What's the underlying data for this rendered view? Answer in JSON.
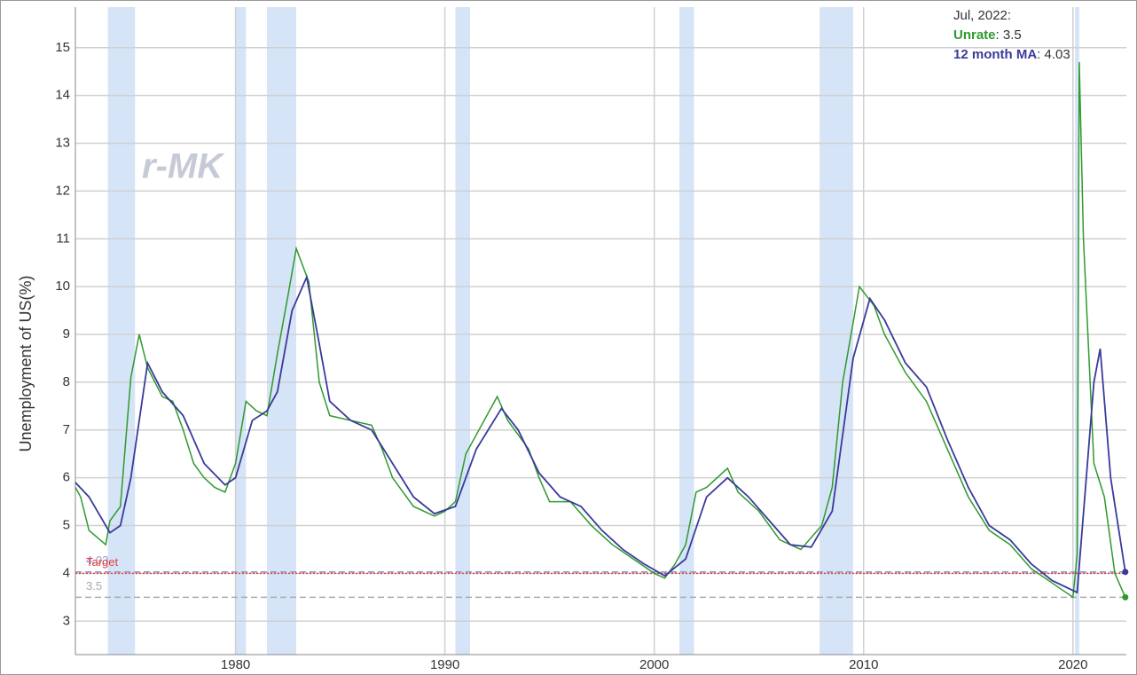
{
  "chart_data": {
    "type": "line",
    "y_label": "Unemployment of US(%)",
    "watermark": "r-MK",
    "xlim": [
      1972.35,
      2022.55
    ],
    "xticks": [
      1980,
      1990,
      2000,
      2010,
      2020
    ],
    "ylim": [
      2.3,
      15.85
    ],
    "yticks": [
      3,
      4,
      5,
      6,
      7,
      8,
      9,
      10,
      11,
      12,
      13,
      14,
      15
    ],
    "grid": true,
    "recessions": [
      [
        1973.9,
        1975.2
      ],
      [
        1980.0,
        1980.5
      ],
      [
        1981.5,
        1982.9
      ],
      [
        1990.5,
        1991.2
      ],
      [
        2001.2,
        2001.9
      ],
      [
        2007.9,
        2009.5
      ],
      [
        2020.1,
        2020.3
      ]
    ],
    "recession_color": "#d6e4f7",
    "reference_lines": [
      {
        "label": "4.03",
        "value": 4.03,
        "color": "#9a9ad0",
        "style": "dashed"
      },
      {
        "label": "Target",
        "value": 4,
        "color": "#e04040",
        "style": "dotted"
      },
      {
        "label": "3.5",
        "value": 3.5,
        "color": "#aaaaaa",
        "style": "dashed"
      }
    ],
    "tooltip": {
      "title": "Jul, 2022:"
    },
    "series": [
      {
        "name": "Unrate",
        "color": "#2e9a2e",
        "x": [
          1972.35,
          1972.6,
          1973.0,
          1973.8,
          1974.0,
          1974.5,
          1975.0,
          1975.4,
          1975.8,
          1976.5,
          1977.0,
          1977.5,
          1978.0,
          1978.5,
          1979.0,
          1979.5,
          1980.0,
          1980.5,
          1981.0,
          1981.5,
          1982.0,
          1982.5,
          1982.9,
          1983.5,
          1984.0,
          1984.5,
          1985.5,
          1986.5,
          1987.0,
          1987.5,
          1988.5,
          1989.5,
          1990.0,
          1990.5,
          1991.0,
          1991.5,
          1992.5,
          1993.0,
          1993.5,
          1994.0,
          1994.5,
          1995.0,
          1996.0,
          1997.0,
          1998.0,
          1999.0,
          2000.0,
          2000.5,
          2001.0,
          2001.5,
          2002.0,
          2002.5,
          2003.5,
          2004.0,
          2005.0,
          2006.0,
          2007.0,
          2008.0,
          2008.5,
          2009.0,
          2009.8,
          2010.5,
          2011.0,
          2012.0,
          2013.0,
          2014.0,
          2015.0,
          2016.0,
          2017.0,
          2018.0,
          2019.0,
          2020.0,
          2020.2,
          2020.3,
          2020.5,
          2021.0,
          2021.5,
          2022.0,
          2022.5
        ],
        "values": [
          5.8,
          5.6,
          4.9,
          4.6,
          5.1,
          5.4,
          8.1,
          9.0,
          8.3,
          7.7,
          7.6,
          7.0,
          6.3,
          6.0,
          5.8,
          5.7,
          6.3,
          7.6,
          7.4,
          7.3,
          8.6,
          9.8,
          10.8,
          10.1,
          8.0,
          7.3,
          7.2,
          7.1,
          6.6,
          6.0,
          5.4,
          5.2,
          5.3,
          5.5,
          6.5,
          6.9,
          7.7,
          7.2,
          6.9,
          6.6,
          6.0,
          5.5,
          5.5,
          5.0,
          4.6,
          4.3,
          4.0,
          3.9,
          4.2,
          4.6,
          5.7,
          5.8,
          6.2,
          5.7,
          5.3,
          4.7,
          4.5,
          5.0,
          5.8,
          8.0,
          10.0,
          9.6,
          9.0,
          8.2,
          7.6,
          6.6,
          5.6,
          4.9,
          4.6,
          4.1,
          3.8,
          3.5,
          4.4,
          14.7,
          11.0,
          6.3,
          5.6,
          4.0,
          3.5
        ]
      },
      {
        "name": "12 month MA",
        "color": "#3a3a9a",
        "x": [
          1972.35,
          1973.0,
          1974.0,
          1974.5,
          1975.0,
          1975.8,
          1976.5,
          1977.5,
          1978.5,
          1979.5,
          1980.0,
          1980.8,
          1981.5,
          1982.0,
          1982.7,
          1983.4,
          1984.0,
          1984.5,
          1985.5,
          1986.5,
          1987.5,
          1988.5,
          1989.5,
          1990.5,
          1991.5,
          1992.7,
          1993.5,
          1994.5,
          1995.5,
          1996.5,
          1997.5,
          1998.5,
          1999.5,
          2000.5,
          2001.5,
          2002.5,
          2003.5,
          2004.5,
          2005.5,
          2006.5,
          2007.5,
          2008.5,
          2009.5,
          2010.3,
          2011.0,
          2012.0,
          2013.0,
          2014.0,
          2015.0,
          2016.0,
          2017.0,
          2018.0,
          2019.0,
          2020.2,
          2021.0,
          2021.3,
          2021.8,
          2022.5
        ],
        "values": [
          5.9,
          5.6,
          4.85,
          5.0,
          6.0,
          8.4,
          7.8,
          7.3,
          6.3,
          5.85,
          6.0,
          7.2,
          7.4,
          7.8,
          9.5,
          10.2,
          8.8,
          7.6,
          7.2,
          7.0,
          6.3,
          5.6,
          5.25,
          5.4,
          6.6,
          7.45,
          7.0,
          6.1,
          5.6,
          5.4,
          4.9,
          4.5,
          4.2,
          3.95,
          4.3,
          5.6,
          6.0,
          5.6,
          5.1,
          4.6,
          4.55,
          5.3,
          8.5,
          9.75,
          9.3,
          8.4,
          7.9,
          6.8,
          5.8,
          5.0,
          4.7,
          4.2,
          3.85,
          3.6,
          8.0,
          8.7,
          6.0,
          4.03
        ]
      }
    ]
  }
}
